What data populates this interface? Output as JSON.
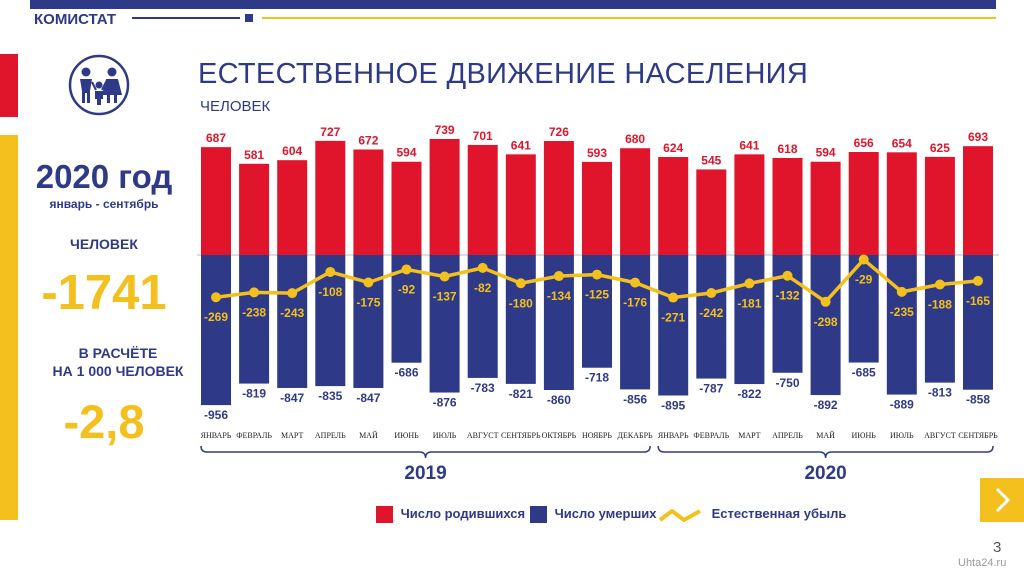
{
  "brand": "КОМИСТАТ",
  "title": "ЕСТЕСТВЕННОЕ ДВИЖЕНИЕ НАСЕЛЕНИЯ",
  "subtitle": "ЧЕЛОВЕК",
  "summary": {
    "year": "2020 год",
    "period": "январь - сентябрь",
    "people_label": "ЧЕЛОВЕК",
    "total": "-1741",
    "per_label_line1": "В РАСЧЁТЕ",
    "per_label_line2": "НА 1 000 ЧЕЛОВЕК",
    "rate": "-2,8"
  },
  "colors": {
    "births": "#e0142b",
    "deaths": "#2e3a87",
    "natural_decrease": "#f3c01d",
    "accent_blue": "#2e3a87",
    "accent_yellow": "#f3c01d"
  },
  "legend": {
    "births": "Число родившихся",
    "deaths": "Число умерших",
    "natural": "Естественная убыль"
  },
  "page_number": "3",
  "watermark": "Uhta24.ru",
  "icons": {
    "logo": "family-icon",
    "next": "chevron-right-icon"
  },
  "chart_data": {
    "type": "bar",
    "years": [
      {
        "label": "2019",
        "months": 12
      },
      {
        "label": "2020",
        "months": 9
      }
    ],
    "categories": [
      "ЯНВАРЬ",
      "ФЕВРАЛЬ",
      "МАРТ",
      "АПРЕЛЬ",
      "МАЙ",
      "ИЮНЬ",
      "ИЮЛЬ",
      "АВГУСТ",
      "СЕНТЯБРЬ",
      "ОКТЯБРЬ",
      "НОЯБРЬ",
      "ДЕКАБРЬ",
      "ЯНВАРЬ",
      "ФЕВРАЛЬ",
      "МАРТ",
      "АПРЕЛЬ",
      "МАЙ",
      "ИЮНЬ",
      "ИЮЛЬ",
      "АВГУСТ",
      "СЕНТЯБРЬ"
    ],
    "series": [
      {
        "name": "Число родившихся",
        "type": "bar",
        "values": [
          687,
          581,
          604,
          727,
          672,
          594,
          739,
          701,
          641,
          726,
          593,
          680,
          624,
          545,
          641,
          618,
          594,
          656,
          654,
          625,
          693
        ]
      },
      {
        "name": "Число умерших",
        "type": "bar",
        "values": [
          -956,
          -819,
          -847,
          -835,
          -847,
          -686,
          -876,
          -783,
          -821,
          -860,
          -718,
          -856,
          -895,
          -787,
          -822,
          -750,
          -892,
          -685,
          -889,
          -813,
          -858
        ]
      },
      {
        "name": "Естественная убыль",
        "type": "line",
        "values": [
          -269,
          -238,
          -243,
          -108,
          -175,
          -92,
          -137,
          -82,
          -180,
          -134,
          -125,
          -176,
          -271,
          -242,
          -181,
          -132,
          -298,
          -29,
          -235,
          -188,
          -165
        ]
      }
    ],
    "grid": false,
    "legend_position": "bottom"
  }
}
